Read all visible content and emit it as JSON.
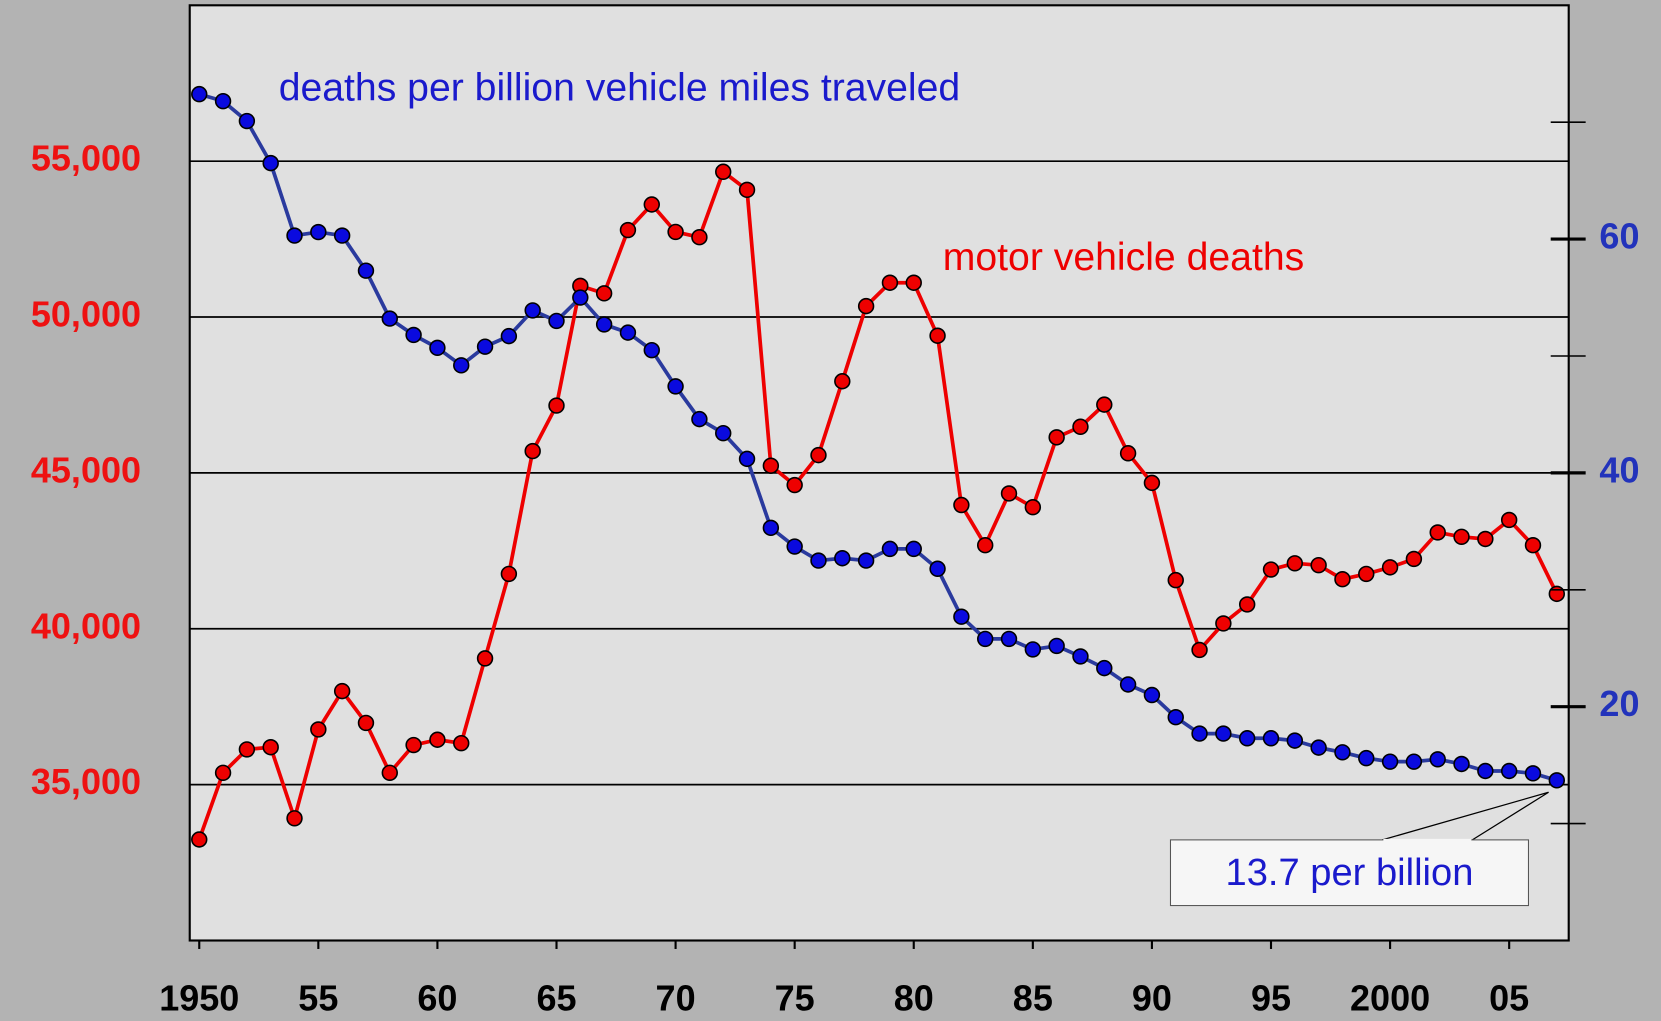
{
  "chart_data": {
    "type": "line",
    "x": [
      1950,
      1951,
      1952,
      1953,
      1954,
      1955,
      1956,
      1957,
      1958,
      1959,
      1960,
      1961,
      1962,
      1963,
      1964,
      1965,
      1966,
      1967,
      1968,
      1969,
      1970,
      1971,
      1972,
      1973,
      1974,
      1975,
      1976,
      1977,
      1978,
      1979,
      1980,
      1981,
      1982,
      1983,
      1984,
      1985,
      1986,
      1987,
      1988,
      1989,
      1990,
      1991,
      1992,
      1993,
      1994,
      1995,
      1996,
      1997,
      1998,
      1999,
      2000,
      2001,
      2002,
      2003,
      2004,
      2005,
      2006,
      2007
    ],
    "series": [
      {
        "name": "motor vehicle deaths",
        "color": "#ee0000",
        "marker_color": "#ee0000",
        "axis": "y",
        "values": [
          33240,
          35380,
          36130,
          36200,
          33920,
          36770,
          38000,
          36980,
          35380,
          36270,
          36440,
          36330,
          39050,
          41760,
          45700,
          47160,
          51000,
          50760,
          52790,
          53610,
          52730,
          52560,
          54660,
          54080,
          45230,
          44610,
          45570,
          47940,
          50350,
          51100,
          51100,
          49400,
          43970,
          42680,
          44340,
          43900,
          46140,
          46480,
          47190,
          45630,
          44680,
          41560,
          39320,
          40170,
          40780,
          41900,
          42100,
          42040,
          41590,
          41760,
          41970,
          42240,
          43090,
          42950,
          42880,
          43490,
          42680,
          41120
        ]
      },
      {
        "name": "deaths per billion vehicle miles traveled",
        "color": "#2a3a9e",
        "marker_color": "#0a0adf",
        "axis": "y2",
        "values": [
          72.4,
          71.8,
          70.1,
          66.5,
          60.3,
          60.6,
          60.3,
          57.3,
          53.2,
          51.8,
          50.7,
          49.2,
          50.8,
          51.7,
          53.9,
          53.0,
          55.0,
          52.7,
          52.0,
          50.5,
          47.4,
          44.6,
          43.4,
          41.2,
          35.3,
          33.7,
          32.5,
          32.7,
          32.5,
          33.5,
          33.5,
          31.8,
          27.7,
          25.8,
          25.8,
          24.9,
          25.2,
          24.3,
          23.3,
          21.9,
          21.0,
          19.1,
          17.7,
          17.7,
          17.3,
          17.3,
          17.1,
          16.5,
          16.1,
          15.6,
          15.3,
          15.3,
          15.5,
          15.1,
          14.5,
          14.5,
          14.3,
          13.7
        ]
      }
    ],
    "xlim": [
      1949.6,
      2007.5
    ],
    "xticks": [
      1950,
      {
        "value": 1955,
        "label": "55"
      },
      {
        "value": 1960,
        "label": "60"
      },
      {
        "value": 1965,
        "label": "65"
      },
      {
        "value": 1970,
        "label": "70"
      },
      {
        "value": 1975,
        "label": "75"
      },
      {
        "value": 1980,
        "label": "80"
      },
      {
        "value": 1985,
        "label": "85"
      },
      {
        "value": 1990,
        "label": "90"
      },
      {
        "value": 1995,
        "label": "95"
      },
      2000,
      {
        "value": 2005,
        "label": "05"
      }
    ],
    "ylim": [
      30000,
      60000
    ],
    "yticks": [
      {
        "value": 35000,
        "label": "35,000"
      },
      {
        "value": 40000,
        "label": "40,000"
      },
      {
        "value": 45000,
        "label": "45,000"
      },
      {
        "value": 50000,
        "label": "50,000"
      },
      {
        "value": 55000,
        "label": "55,000"
      }
    ],
    "y2lim": [
      0,
      80
    ],
    "y2ticks": [
      20,
      40,
      60
    ],
    "y2minorticks": [
      10,
      30,
      50,
      70
    ],
    "grid": true,
    "annotation": "13.7 per billion"
  }
}
